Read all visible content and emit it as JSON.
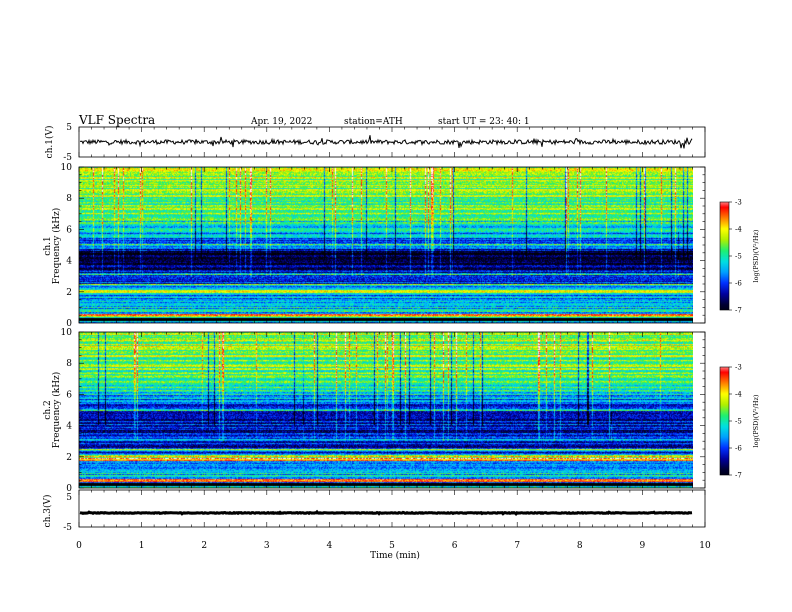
{
  "header": {
    "title": "VLF  Spectra",
    "date": "Apr. 19, 2022",
    "station": "station=ATH",
    "start_ut": "start  UT  =   23: 40: 1"
  },
  "chart_data": [
    {
      "type": "line",
      "panel": "ch1-waveform",
      "ylabel": "ch.1(V)",
      "ylim": [
        -5,
        5
      ],
      "yticks": [
        "5",
        "-5"
      ],
      "xlim": [
        0,
        10
      ],
      "series": [
        {
          "color": "#000000",
          "mean": 0,
          "amplitude_v": 1.2
        }
      ]
    },
    {
      "type": "heatmap",
      "panel": "ch1-spectrogram",
      "ylabel_channel": "ch.1",
      "ylabel": "Frequency  (kHz)",
      "ylim": [
        0,
        10
      ],
      "yticks": [
        "0",
        "2",
        "4",
        "6",
        "8",
        "10"
      ],
      "xlim": [
        0,
        10
      ],
      "colorbar": {
        "label": "log(PSD)(V²/Hz)",
        "range": [
          -7,
          -3
        ],
        "ticks": [
          "-3",
          "-4",
          "-5",
          "-6",
          "-7"
        ]
      }
    },
    {
      "type": "heatmap",
      "panel": "ch2-spectrogram",
      "ylabel_channel": "ch.2",
      "ylabel": "Frequency  (kHz)",
      "ylim": [
        0,
        10
      ],
      "yticks": [
        "0",
        "2",
        "4",
        "6",
        "8",
        "10"
      ],
      "xlim": [
        0,
        10
      ],
      "colorbar": {
        "label": "log(PSD)(V²/Hz)",
        "range": [
          -7,
          -3
        ],
        "ticks": [
          "-3",
          "-4",
          "-5",
          "-6",
          "-7"
        ]
      }
    },
    {
      "type": "line",
      "panel": "ch3-waveform",
      "ylabel": "ch.3(V)",
      "ylim": [
        -5,
        5
      ],
      "yticks": [
        "5",
        "-5"
      ],
      "xlim": [
        0,
        10
      ],
      "series": [
        {
          "color": "#000000",
          "mean": -1.2,
          "amplitude_v": 0.3
        }
      ]
    }
  ],
  "xaxis": {
    "label": "Time  (min)",
    "ticks": [
      "0",
      "1",
      "2",
      "3",
      "4",
      "5",
      "6",
      "7",
      "8",
      "9",
      "10"
    ],
    "data_end_min": 9.8
  },
  "colors": {
    "colormap": [
      "#000000",
      "#000033",
      "#0000a0",
      "#0030ff",
      "#00a0ff",
      "#00e0e0",
      "#20f070",
      "#b0f000",
      "#ffff00",
      "#ff8000",
      "#ff0000",
      "#ffffff"
    ]
  }
}
